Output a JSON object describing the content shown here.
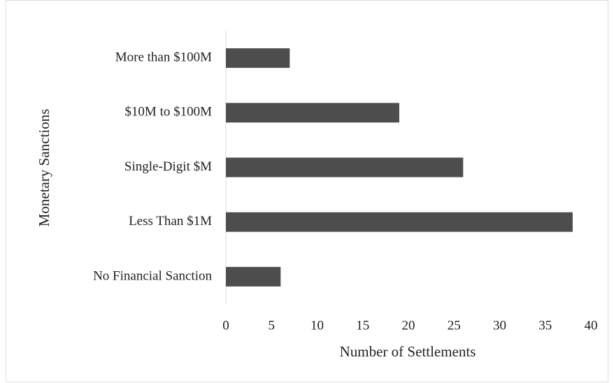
{
  "chart_data": {
    "type": "hbar",
    "categories": [
      "More than $100M",
      "$10M to $100M",
      "Single-Digit $M",
      "Less Than $1M",
      "No Financial Sanction"
    ],
    "values": [
      7,
      19,
      26,
      38,
      6
    ],
    "color": "#4d4d4d",
    "x_label": "Number of Settlements",
    "y_label": "Monetary Sanctions",
    "xlim": [
      0,
      40
    ],
    "xticks": [
      0,
      5,
      10,
      15,
      20,
      25,
      30,
      35,
      40
    ],
    "grid": false
  }
}
